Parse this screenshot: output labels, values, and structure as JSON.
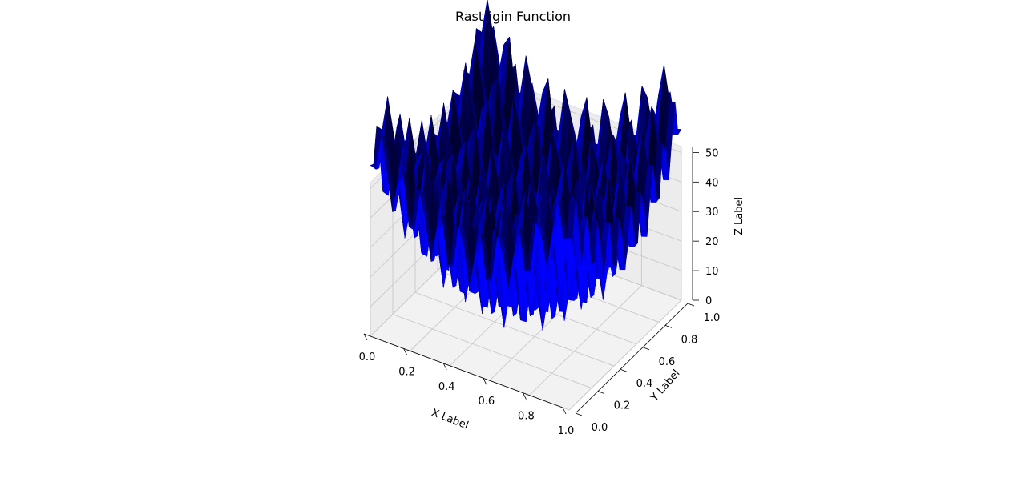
{
  "chart_data": {
    "type": "surface3d",
    "title": "Rastrigin Function",
    "xlabel": "X Label",
    "ylabel": "Y Label",
    "zlabel": "Z Label",
    "function": "Rastrigin",
    "surface_color": "#0000ff",
    "xlim": [
      0,
      1
    ],
    "ylim": [
      0,
      1
    ],
    "zlim": [
      0,
      52
    ],
    "x_ticks": [
      "0.0",
      "0.2",
      "0.4",
      "0.6",
      "0.8",
      "1.0"
    ],
    "y_ticks": [
      "0.0",
      "0.2",
      "0.4",
      "0.6",
      "0.8",
      "1.0"
    ],
    "z_ticks": [
      "0",
      "10",
      "20",
      "30",
      "40",
      "50"
    ],
    "grid": true
  }
}
